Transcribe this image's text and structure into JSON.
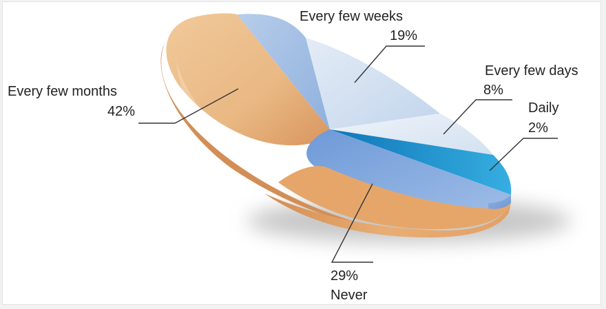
{
  "chart_data": {
    "type": "pie",
    "style": "3d-tilted",
    "slices": [
      {
        "label": "Every few months",
        "value": 42,
        "pct_text": "42%",
        "color": "#e8b27e"
      },
      {
        "label": "Every few weeks",
        "value": 19,
        "pct_text": "19%",
        "color": "#c9daed"
      },
      {
        "label": "Every few days",
        "value": 8,
        "pct_text": "8%",
        "color": "#dbe7f3"
      },
      {
        "label": "Daily",
        "value": 2,
        "pct_text": "2%",
        "color": "#1b8fc7"
      },
      {
        "label": "Never",
        "value": 29,
        "pct_text": "29%",
        "color": "#e6a66a"
      }
    ]
  }
}
